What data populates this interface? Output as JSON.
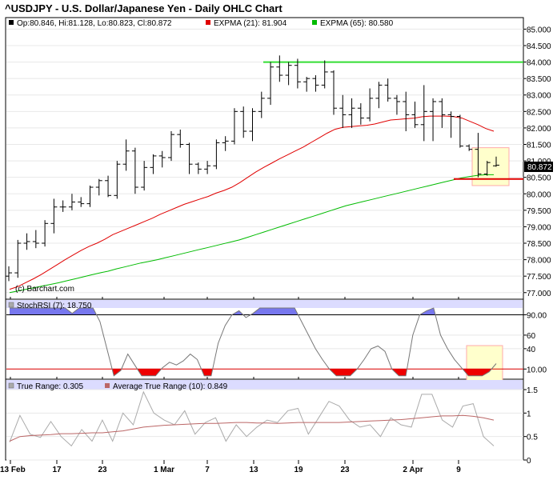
{
  "header": {
    "title": "^USDJPY - U.S. Dollar/Japanese Yen - Daily OHLC Chart"
  },
  "credit": "(c) Barchart.com",
  "legend": {
    "ohlc": "Op:80.846, Hi:81.128, Lo:80.823, Cl:80.872",
    "ema21": "EXPMA (21): 81.904",
    "ema65": "EXPMA (65): 80.580",
    "stochrsi": "StochRSI (7): 18.750",
    "truerange": "True Range: 0.305",
    "atr": "Average True Range (10): 0.849"
  },
  "colors": {
    "ema21": "#e00000",
    "ema65": "#00bb00",
    "resistance": "#33dd33",
    "support": "#e00000",
    "price_bar": "#000000",
    "stoch_line": "#777777",
    "overbought_fill": "#7777ee",
    "oversold_fill": "#ee0000",
    "band": "#dcdcff",
    "highlight_fill": "#ffffcc",
    "highlight_stroke": "#ffaaaa",
    "atr_line": "#bb6666",
    "tr_line": "#aaaaaa"
  },
  "chart_data": [
    {
      "type": "ohlc",
      "panel": "price",
      "y_ticks": [
        "77.000",
        "77.500",
        "78.000",
        "78.500",
        "79.000",
        "79.500",
        "80.000",
        "80.500",
        "81.000",
        "81.500",
        "82.000",
        "82.500",
        "83.000",
        "83.500",
        "84.000",
        "84.500",
        "85.000"
      ],
      "ylim": [
        76.8,
        85.35
      ],
      "last_price_label": "80.872",
      "x_labels": [
        "13 Feb",
        "17",
        "23",
        "1 Mar",
        "7",
        "13",
        "19",
        "23",
        "2 Apr",
        "9"
      ],
      "ohlc": [
        {
          "o": 77.5,
          "h": 77.8,
          "l": 77.35,
          "c": 77.6
        },
        {
          "o": 77.6,
          "h": 78.6,
          "l": 77.45,
          "c": 78.5
        },
        {
          "o": 78.5,
          "h": 78.8,
          "l": 78.3,
          "c": 78.55
        },
        {
          "o": 78.55,
          "h": 78.9,
          "l": 78.35,
          "c": 78.5
        },
        {
          "o": 78.5,
          "h": 79.2,
          "l": 78.4,
          "c": 79.1
        },
        {
          "o": 79.1,
          "h": 79.85,
          "l": 78.8,
          "c": 79.6
        },
        {
          "o": 79.6,
          "h": 79.8,
          "l": 79.45,
          "c": 79.6
        },
        {
          "o": 79.6,
          "h": 80.0,
          "l": 79.5,
          "c": 79.75
        },
        {
          "o": 79.75,
          "h": 79.9,
          "l": 79.6,
          "c": 79.7
        },
        {
          "o": 79.7,
          "h": 80.25,
          "l": 79.6,
          "c": 80.2
        },
        {
          "o": 80.2,
          "h": 80.45,
          "l": 79.95,
          "c": 80.4
        },
        {
          "o": 80.4,
          "h": 80.55,
          "l": 79.9,
          "c": 79.95
        },
        {
          "o": 79.95,
          "h": 81.0,
          "l": 79.85,
          "c": 80.9
        },
        {
          "o": 80.9,
          "h": 81.65,
          "l": 80.7,
          "c": 81.3
        },
        {
          "o": 81.3,
          "h": 81.4,
          "l": 80.0,
          "c": 80.2
        },
        {
          "o": 80.2,
          "h": 81.0,
          "l": 80.1,
          "c": 80.8
        },
        {
          "o": 80.8,
          "h": 81.2,
          "l": 80.6,
          "c": 81.15
        },
        {
          "o": 81.15,
          "h": 81.3,
          "l": 80.8,
          "c": 81.1
        },
        {
          "o": 81.1,
          "h": 81.9,
          "l": 81.0,
          "c": 81.8
        },
        {
          "o": 81.8,
          "h": 81.95,
          "l": 81.4,
          "c": 81.5
        },
        {
          "o": 81.5,
          "h": 81.55,
          "l": 80.6,
          "c": 80.9
        },
        {
          "o": 80.9,
          "h": 80.95,
          "l": 80.6,
          "c": 80.75
        },
        {
          "o": 80.75,
          "h": 81.0,
          "l": 80.6,
          "c": 80.85
        },
        {
          "o": 80.85,
          "h": 81.65,
          "l": 80.75,
          "c": 81.55
        },
        {
          "o": 81.55,
          "h": 81.75,
          "l": 81.3,
          "c": 81.6
        },
        {
          "o": 81.6,
          "h": 82.6,
          "l": 81.5,
          "c": 82.5
        },
        {
          "o": 82.5,
          "h": 82.65,
          "l": 81.7,
          "c": 81.9
        },
        {
          "o": 81.9,
          "h": 82.6,
          "l": 81.6,
          "c": 82.5
        },
        {
          "o": 82.5,
          "h": 83.1,
          "l": 82.3,
          "c": 82.9
        },
        {
          "o": 82.9,
          "h": 84.0,
          "l": 82.7,
          "c": 83.85
        },
        {
          "o": 83.85,
          "h": 84.2,
          "l": 83.4,
          "c": 83.6
        },
        {
          "o": 83.6,
          "h": 84.0,
          "l": 83.3,
          "c": 83.9
        },
        {
          "o": 83.9,
          "h": 84.1,
          "l": 83.2,
          "c": 83.4
        },
        {
          "o": 83.4,
          "h": 83.55,
          "l": 83.1,
          "c": 83.5
        },
        {
          "o": 83.5,
          "h": 83.6,
          "l": 83.1,
          "c": 83.3
        },
        {
          "o": 83.3,
          "h": 84.05,
          "l": 83.2,
          "c": 83.7
        },
        {
          "o": 83.7,
          "h": 83.75,
          "l": 82.4,
          "c": 82.6
        },
        {
          "o": 82.6,
          "h": 83.0,
          "l": 82.0,
          "c": 82.4
        },
        {
          "o": 82.4,
          "h": 82.9,
          "l": 82.0,
          "c": 82.6
        },
        {
          "o": 82.6,
          "h": 82.75,
          "l": 82.1,
          "c": 82.3
        },
        {
          "o": 82.3,
          "h": 83.2,
          "l": 82.2,
          "c": 82.9
        },
        {
          "o": 82.9,
          "h": 83.4,
          "l": 82.6,
          "c": 83.3
        },
        {
          "o": 83.3,
          "h": 83.5,
          "l": 82.8,
          "c": 82.9
        },
        {
          "o": 82.9,
          "h": 83.0,
          "l": 82.4,
          "c": 82.8
        },
        {
          "o": 82.8,
          "h": 83.1,
          "l": 81.9,
          "c": 82.4
        },
        {
          "o": 82.4,
          "h": 82.8,
          "l": 82.0,
          "c": 82.1
        },
        {
          "o": 82.1,
          "h": 83.3,
          "l": 81.6,
          "c": 82.5
        },
        {
          "o": 82.5,
          "h": 82.9,
          "l": 81.6,
          "c": 82.8
        },
        {
          "o": 82.8,
          "h": 82.9,
          "l": 82.0,
          "c": 82.4
        },
        {
          "o": 82.4,
          "h": 82.5,
          "l": 81.7,
          "c": 82.35
        },
        {
          "o": 82.35,
          "h": 82.4,
          "l": 81.4,
          "c": 81.45
        },
        {
          "o": 81.45,
          "h": 81.5,
          "l": 81.3,
          "c": 81.35
        },
        {
          "o": 81.35,
          "h": 81.85,
          "l": 80.5,
          "c": 80.6
        },
        {
          "o": 80.6,
          "h": 81.0,
          "l": 80.55,
          "c": 80.95
        },
        {
          "o": 80.85,
          "h": 81.13,
          "l": 80.82,
          "c": 80.87
        }
      ],
      "ema21": [
        77.1,
        77.18,
        77.3,
        77.42,
        77.55,
        77.7,
        77.85,
        78.0,
        78.14,
        78.28,
        78.4,
        78.5,
        78.62,
        78.76,
        78.86,
        78.96,
        79.06,
        79.16,
        79.26,
        79.38,
        79.48,
        79.58,
        79.68,
        79.76,
        79.84,
        79.92,
        80.02,
        80.1,
        80.2,
        80.34,
        80.5,
        80.66,
        80.8,
        80.93,
        81.06,
        81.18,
        81.3,
        81.42,
        81.56,
        81.7,
        81.84,
        81.96,
        82.02,
        82.04,
        82.06,
        82.08,
        82.12,
        82.18,
        82.24,
        82.26,
        82.28,
        82.3,
        82.34,
        82.36,
        82.36,
        82.36,
        82.34,
        82.3,
        82.2,
        82.1,
        81.98,
        81.9
      ],
      "ema65": [
        77.0,
        77.05,
        77.1,
        77.15,
        77.2,
        77.25,
        77.3,
        77.36,
        77.42,
        77.48,
        77.54,
        77.6,
        77.65,
        77.72,
        77.78,
        77.84,
        77.9,
        77.95,
        78.0,
        78.06,
        78.12,
        78.18,
        78.24,
        78.3,
        78.36,
        78.42,
        78.48,
        78.54,
        78.6,
        78.68,
        78.76,
        78.84,
        78.92,
        79.0,
        79.08,
        79.16,
        79.24,
        79.32,
        79.4,
        79.48,
        79.56,
        79.64,
        79.7,
        79.76,
        79.82,
        79.88,
        79.94,
        80.0,
        80.06,
        80.12,
        80.18,
        80.24,
        80.3,
        80.36,
        80.42,
        80.48,
        80.52,
        80.56,
        80.58,
        80.58
      ],
      "resistance": 84.0,
      "support": 80.45,
      "highlight_range": [
        80.25,
        81.4
      ]
    },
    {
      "type": "line",
      "panel": "stochrsi",
      "title": "StochRSI (7)",
      "y_ticks": [
        "10.00",
        "40",
        "60",
        "90.00"
      ],
      "ylim": [
        -5,
        100
      ],
      "overbought": 90,
      "oversold": 10,
      "values": [
        100,
        100,
        100,
        100,
        100,
        100,
        100,
        100,
        100,
        92,
        100,
        100,
        100,
        80,
        40,
        0,
        8,
        32,
        16,
        0,
        0,
        0,
        12,
        20,
        16,
        22,
        32,
        24,
        0,
        0,
        48,
        74,
        90,
        96,
        86,
        92,
        100,
        100,
        100,
        100,
        100,
        100,
        80,
        60,
        40,
        24,
        10,
        0,
        0,
        0,
        10,
        24,
        40,
        44,
        36,
        10,
        0,
        0,
        60,
        90,
        96,
        100,
        60,
        40,
        24,
        12,
        0,
        0,
        0,
        6,
        18
      ]
    },
    {
      "type": "line",
      "panel": "truerange",
      "y_ticks": [
        "0",
        "0.5",
        "1",
        "1.5"
      ],
      "ylim": [
        0,
        1.5
      ],
      "true_range": [
        0.38,
        0.95,
        0.55,
        0.48,
        0.82,
        0.5,
        0.3,
        0.65,
        0.4,
        0.85,
        0.4,
        1.0,
        0.75,
        1.45,
        1.0,
        0.85,
        0.75,
        1.05,
        0.55,
        0.8,
        0.9,
        0.4,
        0.75,
        0.5,
        0.7,
        0.85,
        0.8,
        1.05,
        1.1,
        0.55,
        0.9,
        1.25,
        1.15,
        0.85,
        0.7,
        0.75,
        0.5,
        0.9,
        0.75,
        0.7,
        1.4,
        1.4,
        0.85,
        0.7,
        1.15,
        1.2,
        0.5,
        0.3
      ],
      "atr": [
        0.4,
        0.5,
        0.52,
        0.53,
        0.54,
        0.56,
        0.56,
        0.57,
        0.58,
        0.58,
        0.6,
        0.62,
        0.66,
        0.7,
        0.72,
        0.74,
        0.75,
        0.76,
        0.77,
        0.78,
        0.78,
        0.79,
        0.8,
        0.8,
        0.79,
        0.79,
        0.78,
        0.79,
        0.8,
        0.8,
        0.8,
        0.8,
        0.8,
        0.81,
        0.82,
        0.83,
        0.84,
        0.85,
        0.86,
        0.88,
        0.9,
        0.92,
        0.94,
        0.94,
        0.95,
        0.93,
        0.9,
        0.85
      ]
    }
  ]
}
